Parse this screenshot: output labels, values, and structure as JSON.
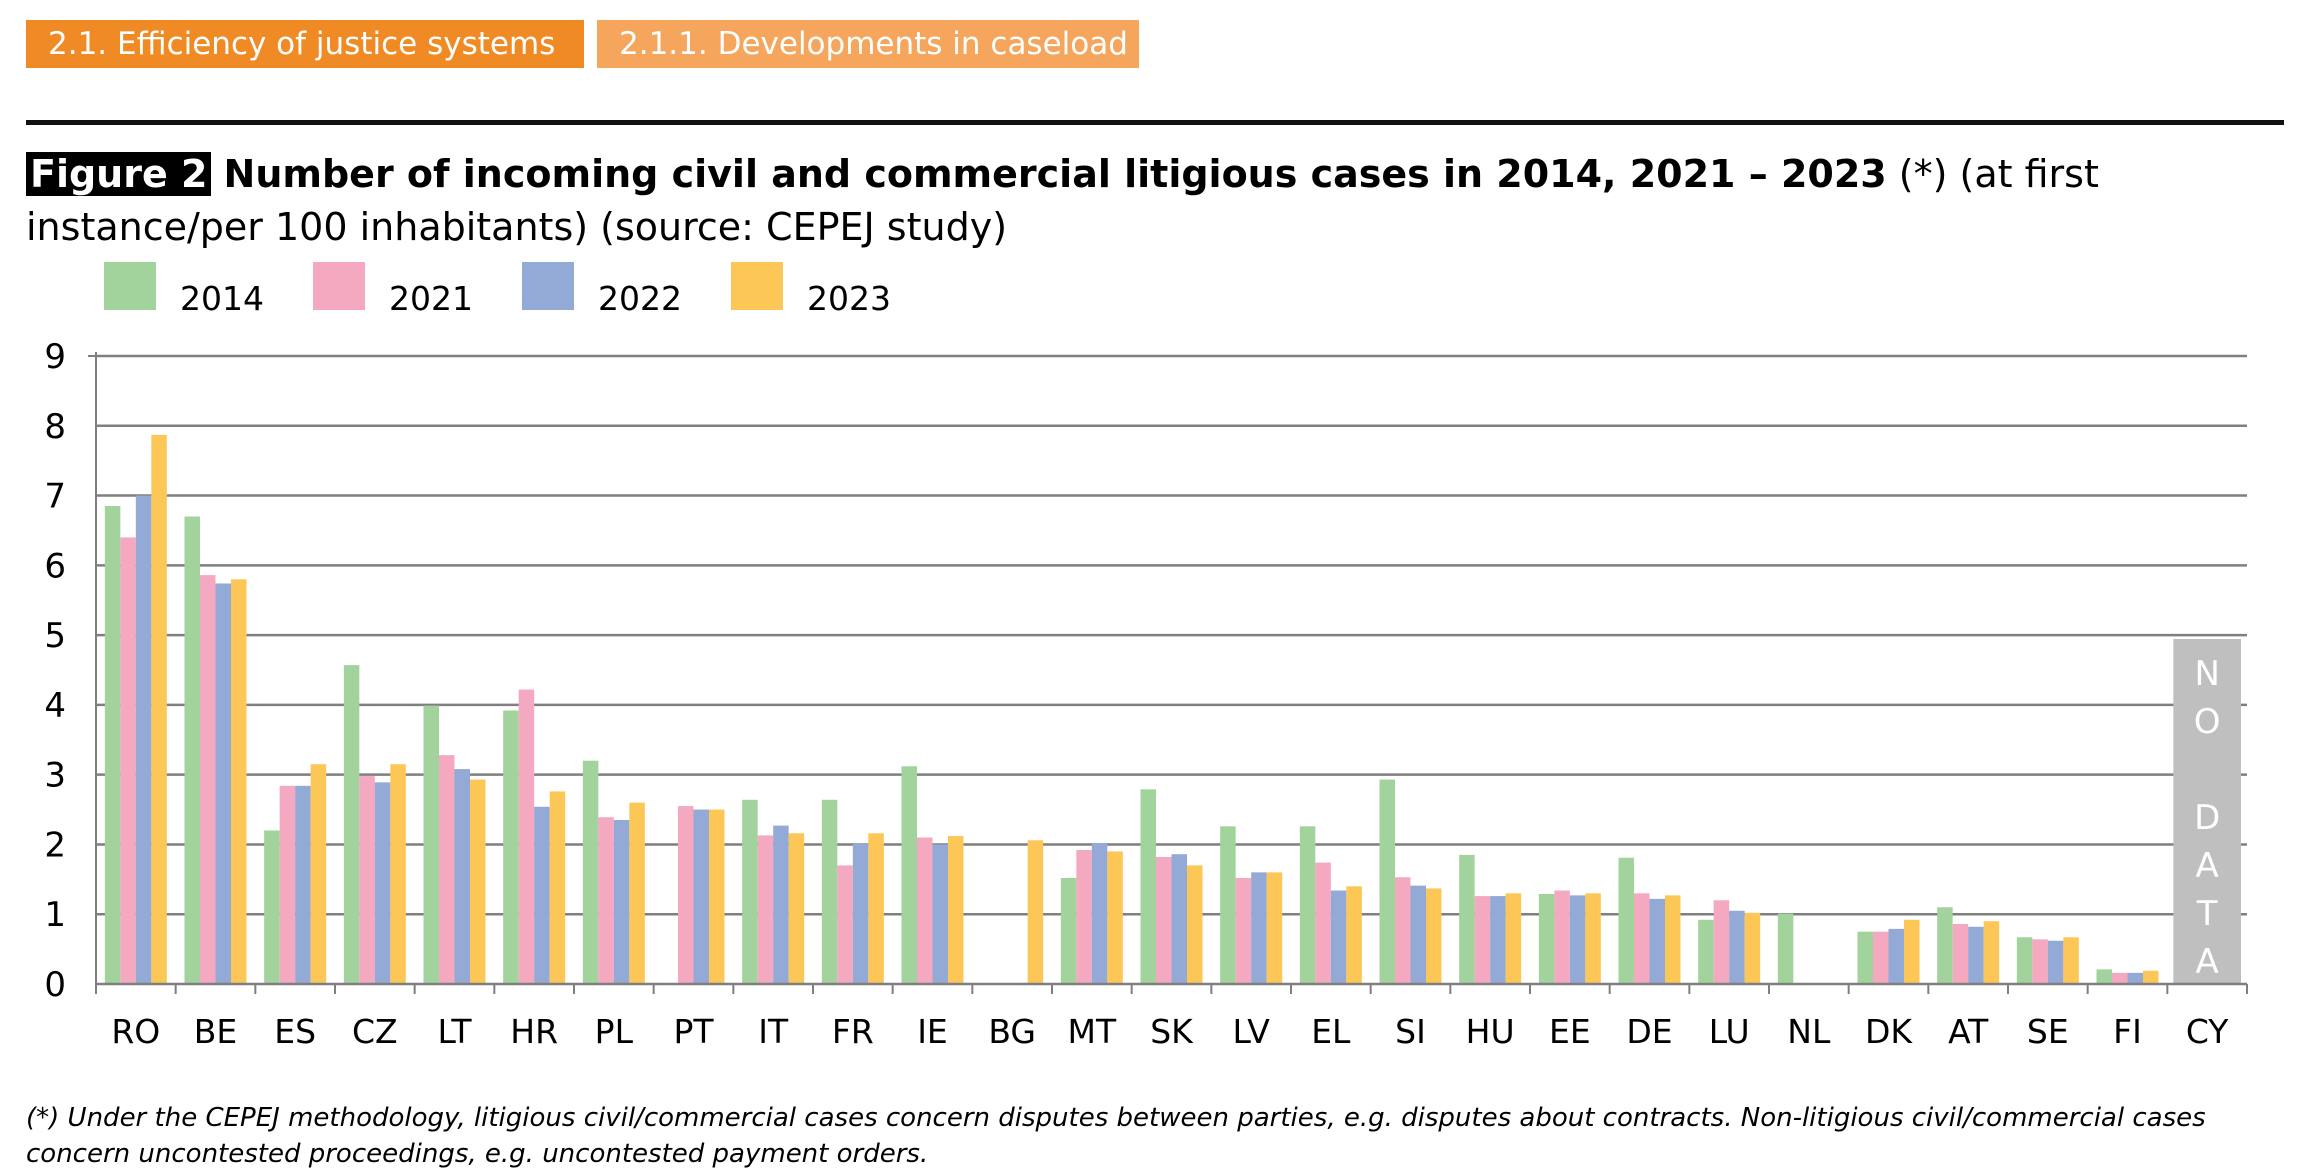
{
  "header": {
    "tab1_label": "2.1. Efficiency of justice systems",
    "tab2_label": "2.1.1. Developments in caseload"
  },
  "figure": {
    "label": "Figure 2",
    "title_bold": "Number of incoming civil and commercial litigious cases in 2014, 2021 – 2023",
    "title_rest": " (*) (at first instance/per 100 inhabitants) (source: CEPEJ study)"
  },
  "footnote": "(*) Under the CEPEJ methodology, litigious civil/commercial cases concern disputes between parties, e.g. disputes about contracts. Non-litigious civil/commercial cases concern uncontested proceedings, e.g. uncontested payment orders.",
  "chart_data": {
    "type": "bar",
    "categories": [
      "RO",
      "BE",
      "ES",
      "CZ",
      "LT",
      "HR",
      "PL",
      "PT",
      "IT",
      "FR",
      "IE",
      "BG",
      "MT",
      "SK",
      "LV",
      "EL",
      "SI",
      "HU",
      "EE",
      "DE",
      "LU",
      "NL",
      "DK",
      "AT",
      "SE",
      "FI",
      "CY"
    ],
    "series": [
      {
        "name": "2014",
        "color": "#a2d39c",
        "values": [
          6.85,
          6.7,
          2.2,
          4.57,
          3.99,
          3.92,
          3.2,
          null,
          2.64,
          2.64,
          3.12,
          null,
          1.52,
          2.79,
          2.26,
          2.26,
          2.93,
          1.85,
          1.29,
          1.81,
          0.92,
          1.01,
          0.75,
          1.1,
          0.67,
          0.21,
          null
        ]
      },
      {
        "name": "2021",
        "color": "#f4a9c0",
        "values": [
          6.4,
          5.86,
          2.84,
          2.98,
          3.28,
          4.22,
          2.39,
          2.55,
          2.13,
          1.7,
          2.1,
          null,
          1.92,
          1.82,
          1.52,
          1.74,
          1.53,
          1.26,
          1.34,
          1.3,
          1.2,
          null,
          0.75,
          0.86,
          0.64,
          0.16,
          null
        ]
      },
      {
        "name": "2022",
        "color": "#93a9d6",
        "values": [
          7.0,
          5.74,
          2.84,
          2.89,
          3.08,
          2.54,
          2.35,
          2.5,
          2.27,
          2.01,
          2.0,
          null,
          2.02,
          1.86,
          1.6,
          1.34,
          1.41,
          1.26,
          1.27,
          1.22,
          1.05,
          null,
          0.79,
          0.82,
          0.62,
          0.16,
          null
        ]
      },
      {
        "name": "2023",
        "color": "#fdc757",
        "values": [
          7.87,
          5.8,
          3.15,
          3.15,
          2.93,
          2.76,
          2.6,
          2.5,
          2.16,
          2.16,
          2.12,
          2.06,
          1.9,
          1.7,
          1.6,
          1.4,
          1.37,
          1.3,
          1.3,
          1.27,
          1.02,
          null,
          0.92,
          0.9,
          0.67,
          0.19,
          null
        ]
      }
    ],
    "ylim": [
      0,
      9
    ],
    "yticks": [
      0,
      1,
      2,
      3,
      4,
      5,
      6,
      7,
      8,
      9
    ],
    "grid": true,
    "legend_position": "top-left",
    "annotation": {
      "category": "CY",
      "text": "NO DATA",
      "color": "#bfbfbf"
    }
  }
}
